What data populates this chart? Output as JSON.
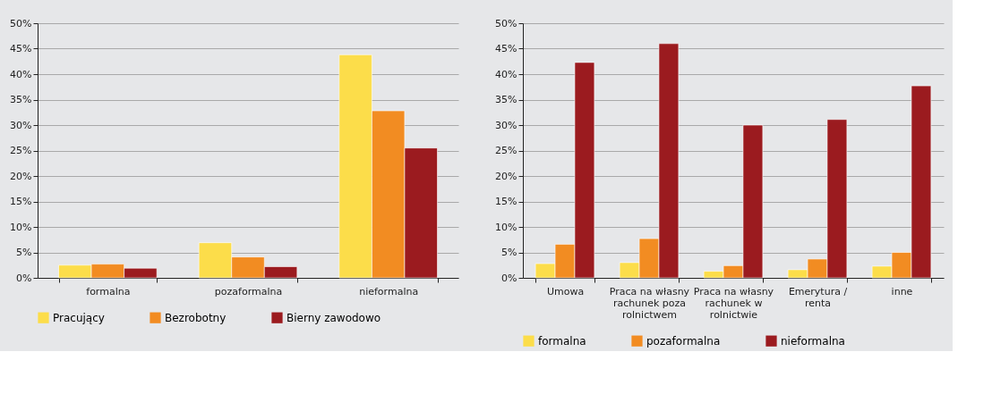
{
  "chart_data": [
    {
      "type": "bar",
      "categories": [
        "formalna",
        "pozaformalna",
        "nieformalna"
      ],
      "series": [
        {
          "name": "Pracujący",
          "color": "#fcdd4a",
          "values": [
            2.5,
            6.9,
            43.8
          ]
        },
        {
          "name": "Bezrobotny",
          "color": "#f28c22",
          "values": [
            2.7,
            4.1,
            32.8
          ]
        },
        {
          "name": "Bierny zawodowo",
          "color": "#9b1b1f",
          "values": [
            1.9,
            2.2,
            25.5
          ]
        }
      ],
      "ylim": [
        0,
        50
      ],
      "yticks": [
        {
          "value": 0,
          "label": "0%"
        },
        {
          "value": 5,
          "label": "5%"
        },
        {
          "value": 10,
          "label": "10%"
        },
        {
          "value": 15,
          "label": "15%"
        },
        {
          "value": 20,
          "label": "20%"
        },
        {
          "value": 25,
          "label": "25%"
        },
        {
          "value": 30,
          "label": "30%"
        },
        {
          "value": 35,
          "label": "35%"
        },
        {
          "value": 40,
          "label": "40%"
        },
        {
          "value": 45,
          "label": "45%"
        },
        {
          "value": 50,
          "label": "50%"
        }
      ],
      "grid": "y",
      "legend": "bottom"
    },
    {
      "type": "bar",
      "categories": [
        "Umowa",
        "Praca na własny rachunek poza rolnictwem",
        "Praca na własny rachunek w rolnictwie",
        "Emerytura / renta",
        "inne"
      ],
      "series": [
        {
          "name": "formalna",
          "color": "#fcdd4a",
          "values": [
            2.8,
            3.0,
            1.3,
            1.6,
            2.3
          ]
        },
        {
          "name": "pozaformalna",
          "color": "#f28c22",
          "values": [
            6.6,
            7.7,
            2.4,
            3.7,
            5.0
          ]
        },
        {
          "name": "nieformalna",
          "color": "#9b1b1f",
          "values": [
            42.3,
            46.0,
            30.0,
            31.1,
            37.7
          ]
        }
      ],
      "ylim": [
        0,
        50
      ],
      "yticks": [
        {
          "value": 0,
          "label": "0%"
        },
        {
          "value": 5,
          "label": "5%"
        },
        {
          "value": 10,
          "label": "10%"
        },
        {
          "value": 15,
          "label": "15%"
        },
        {
          "value": 20,
          "label": "20%"
        },
        {
          "value": 25,
          "label": "25%"
        },
        {
          "value": 30,
          "label": "30%"
        },
        {
          "value": 35,
          "label": "35%"
        },
        {
          "value": 40,
          "label": "40%"
        },
        {
          "value": 45,
          "label": "45%"
        },
        {
          "value": 50,
          "label": "50%"
        }
      ],
      "grid": "y",
      "legend": "bottom"
    }
  ]
}
